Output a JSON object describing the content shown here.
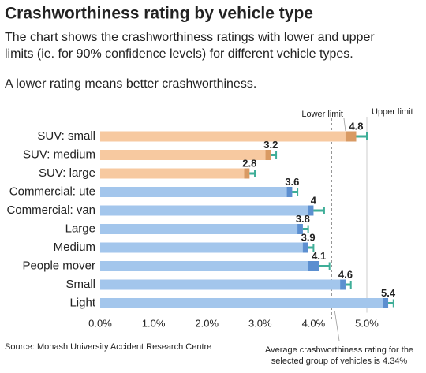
{
  "chart_data": {
    "type": "range_bar",
    "title": "Crashworthiness rating by vehicle type",
    "subtitle_lines": [
      "The chart shows the crashworthiness ratings with lower and upper",
      "limits (ie. for 90% confidence levels) for different vehicle types."
    ],
    "note": "A lower rating means better crashworthiness.",
    "categories": [
      "SUV: small",
      "SUV: medium",
      "SUV: large",
      "Commercial: ute",
      "Commercial: van",
      "Large",
      "Medium",
      "People mover",
      "Small",
      "Light"
    ],
    "values": [
      4.8,
      3.2,
      2.8,
      3.6,
      4.0,
      3.8,
      3.9,
      4.1,
      4.6,
      5.4
    ],
    "lower": [
      4.6,
      3.1,
      2.7,
      3.5,
      3.9,
      3.7,
      3.8,
      3.9,
      4.5,
      5.3
    ],
    "upper": [
      5.0,
      3.3,
      2.9,
      3.7,
      4.2,
      3.9,
      4.0,
      4.3,
      4.7,
      5.5
    ],
    "colors": [
      "#f7c9a0",
      "#f7c9a0",
      "#f7c9a0",
      "#a3c6ec",
      "#a3c6ec",
      "#a3c6ec",
      "#a3c6ec",
      "#a3c6ec",
      "#a3c6ec",
      "#a3c6ec"
    ],
    "dark_colors": [
      "#d99a63",
      "#d99a63",
      "#d99a63",
      "#5c8fd0",
      "#5c8fd0",
      "#5c8fd0",
      "#5c8fd0",
      "#5c8fd0",
      "#5c8fd0",
      "#5c8fd0"
    ],
    "limit_color": "#3fae98",
    "lower_limit_label": "Lower limit",
    "upper_limit_label": "Upper limit",
    "average": 4.34,
    "average_label_lines": [
      "Average crashworthiness rating for the",
      "selected group of vehicles is 4.34%"
    ],
    "xlim": [
      0,
      5.7
    ],
    "xticks": [
      {
        "value": 0,
        "label": "0.0%"
      },
      {
        "value": 1,
        "label": "1.0%"
      },
      {
        "value": 2,
        "label": "2.0%"
      },
      {
        "value": 3,
        "label": "3.0%"
      },
      {
        "value": 4,
        "label": "4.0%"
      },
      {
        "value": 5,
        "label": "5.0%"
      }
    ],
    "source": "Source: Monash University Accident Research Centre"
  }
}
